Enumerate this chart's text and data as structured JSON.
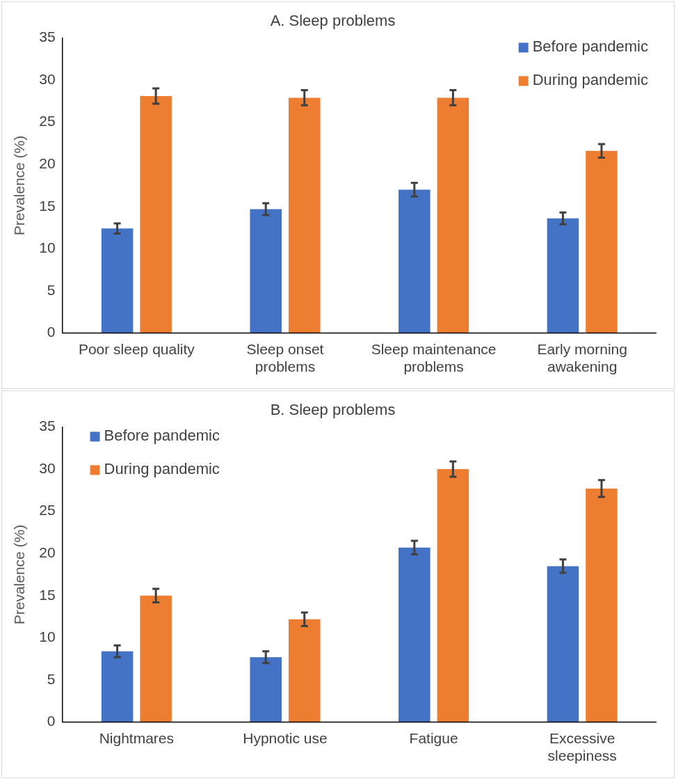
{
  "chart_data": [
    {
      "type": "bar",
      "title": "A. Sleep problems",
      "ylabel": "Prevalence (%)",
      "categories": [
        "Poor sleep quality",
        "Sleep onset problems",
        "Sleep maintenance problems",
        "Early morning awakening"
      ],
      "series": [
        {
          "name": "Before pandemic",
          "color": "#4472c4",
          "values": [
            12.4,
            14.7,
            17.0,
            13.6
          ],
          "errors": [
            0.6,
            0.7,
            0.8,
            0.7
          ]
        },
        {
          "name": "During pandemic",
          "color": "#ed7d31",
          "values": [
            28.1,
            27.9,
            27.9,
            21.6
          ],
          "errors": [
            0.9,
            0.9,
            0.9,
            0.8
          ]
        }
      ],
      "ylim": [
        0,
        35
      ],
      "yticks": [
        0,
        5,
        10,
        15,
        20,
        25,
        30,
        35
      ],
      "grid": false,
      "legend": "top right"
    },
    {
      "type": "bar",
      "title": "B. Sleep problems",
      "ylabel": "Prevalence (%)",
      "categories": [
        "Nightmares",
        "Hypnotic use",
        "Fatigue",
        "Excessive sleepiness"
      ],
      "series": [
        {
          "name": "Before pandemic",
          "color": "#4472c4",
          "values": [
            8.4,
            7.7,
            20.7,
            18.5
          ],
          "errors": [
            0.7,
            0.7,
            0.8,
            0.8
          ]
        },
        {
          "name": "During pandemic",
          "color": "#ed7d31",
          "values": [
            15.0,
            12.2,
            30.0,
            27.7
          ],
          "errors": [
            0.8,
            0.8,
            0.9,
            1.0
          ]
        }
      ],
      "ylim": [
        0,
        35
      ],
      "yticks": [
        0,
        5,
        10,
        15,
        20,
        25,
        30,
        35
      ],
      "grid": false,
      "legend": "top left"
    }
  ]
}
